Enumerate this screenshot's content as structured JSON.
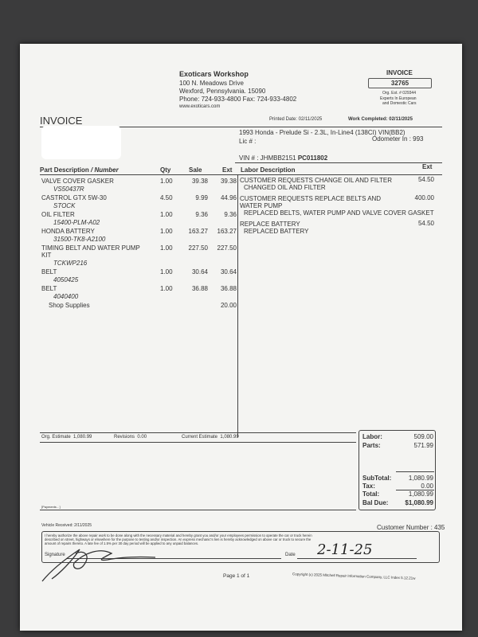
{
  "shop": {
    "name": "Exoticars Workshop",
    "address1": "100 N. Meadows Drive",
    "address2": "Wexford, Pennsylvania.  15090",
    "phone": "Phone: 724-933-4800   Fax: 724-933-4802",
    "web": "www.exoticars.com"
  },
  "invoice_box": {
    "label": "INVOICE",
    "number": "32765",
    "org_est": "Org. Est. # 029344",
    "tagline1": "Experts In European",
    "tagline2": "and Domestic Cars"
  },
  "title": "INVOICE",
  "printed_date": "Printed Date: 02/11/2025",
  "work_completed": "Work Completed: 02/11/2025",
  "vehicle": {
    "desc": "1993 Honda - Prelude Si - 2.3L, In-Line4 (138CI) VIN(BB2)",
    "lic": "Lic # :",
    "odometer": "Odometer In :  993",
    "vin_label": "VIN # : JHMBB2151 ",
    "vin_bold": "PC011802"
  },
  "parts_headers": {
    "desc": "Part Description",
    "number": " / Number",
    "qty": "Qty",
    "sale": "Sale",
    "ext": "Ext"
  },
  "parts": [
    {
      "desc": "VALVE COVER GASKER",
      "number": "VS50437R",
      "qty": "1.00",
      "sale": "39.38",
      "ext": "39.38"
    },
    {
      "desc": "CASTROL GTX 5W-30",
      "number": "STOCK",
      "qty": "4.50",
      "sale": "9.99",
      "ext": "44.96"
    },
    {
      "desc": "OIL FILTER",
      "number": "15400-PLM-A02",
      "qty": "1.00",
      "sale": "9.36",
      "ext": "9.36"
    },
    {
      "desc": "HONDA BATTERY",
      "number": "31500-TK8-A2100",
      "qty": "1.00",
      "sale": "163.27",
      "ext": "163.27"
    },
    {
      "desc": "TIMING BELT AND WATER PUMP",
      "desc2": "KIT",
      "number": "TCKWP216",
      "qty": "1.00",
      "sale": "227.50",
      "ext": "227.50"
    },
    {
      "desc": "BELT",
      "number": "4050425",
      "qty": "1.00",
      "sale": "30.64",
      "ext": "30.64"
    },
    {
      "desc": "BELT",
      "number": "4040400",
      "qty": "1.00",
      "sale": "36.88",
      "ext": "36.88"
    }
  ],
  "shop_supplies": {
    "label": "Shop Supplies",
    "ext": "20.00"
  },
  "labor_headers": {
    "desc": "Labor Description",
    "ext": "Ext"
  },
  "labor": [
    {
      "lines": [
        "CUSTOMER REQUESTS CHANGE OIL AND FILTER"
      ],
      "detail": "CHANGED OIL AND FILTER",
      "ext": "54.50"
    },
    {
      "lines": [
        "CUSTOMER REQUESTS REPLACE BELTS AND",
        "WATER PUMP"
      ],
      "detail": "REPLACED BELTS, WATER PUMP AND VALVE COVER GASKET",
      "ext": "400.00"
    },
    {
      "lines": [
        "REPLACE BATTERY"
      ],
      "detail": "REPLACED BATTERY",
      "ext": "54.50"
    }
  ],
  "estimate": {
    "org_label": "Org. Estimate",
    "org": "1,080.99",
    "rev_label": "Revisions",
    "rev": "0.00",
    "cur_label": "Current Estimate",
    "cur": "1,080.99"
  },
  "totals": {
    "labor_label": "Labor:",
    "labor": "509.00",
    "parts_label": "Parts:",
    "parts": "571.99",
    "subtotal_label": "SubTotal:",
    "subtotal": "1,080.99",
    "tax_label": "Tax:",
    "tax": "0.00",
    "total_label": "Total:",
    "total": "1,080.99",
    "bal_label": "Bal Due:",
    "bal": "$1,080.99"
  },
  "payments": "[Payments - ]",
  "vehicle_received": "Vehicle Received: 2/11/2025",
  "customer_number": "Customer Number : 435",
  "terms": [
    "I hereby authorize the above repair work to be done along with the necessary material and hereby grant you and/or your employees permission to operate the car or truck herein",
    "described on street, highways or elsewhere for the purpose to testing and/or inspection.  An express mechanic's lien is hereby acknowledged on above car or truck to secure the",
    "amount of repairs thereto.  A late fee of 1.5% per 30 day period will be applied to any unpaid balances."
  ],
  "signature_label": "Signature",
  "date_label": "Date",
  "handwritten_date": "2-11-25",
  "page": "Page 1 of 1",
  "copyright": "Copyright (c) 2025 Mitchell Repair Information Company, LLC  Index 5.12.21w"
}
